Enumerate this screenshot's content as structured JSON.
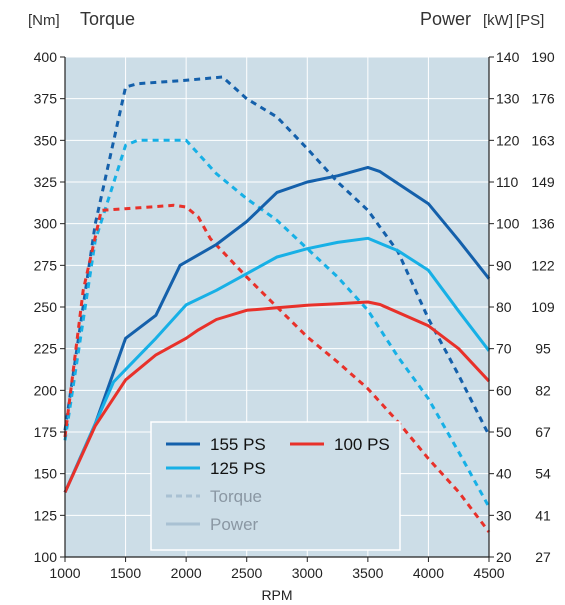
{
  "chart_data": {
    "type": "line",
    "header": {
      "left_unit": "[Nm]",
      "left_title": "Torque",
      "right_title": "Power",
      "right_unit_kw": "[kW]",
      "right_unit_ps": "[PS]"
    },
    "xlabel": "RPM",
    "xlim": [
      1000,
      4500
    ],
    "x_ticks": [
      1000,
      1500,
      2000,
      2500,
      3000,
      3500,
      4000,
      4500
    ],
    "ylim_torque_nm": [
      100,
      400
    ],
    "y_ticks_torque": [
      100,
      125,
      150,
      175,
      200,
      225,
      250,
      275,
      300,
      325,
      350,
      375,
      400
    ],
    "ylim_power_kw": [
      20,
      140
    ],
    "y_ticks_kw": [
      20,
      30,
      40,
      50,
      60,
      70,
      80,
      90,
      100,
      110,
      120,
      130,
      140
    ],
    "y_ticks_ps": [
      27,
      41,
      54,
      67,
      82,
      95,
      109,
      122,
      136,
      149,
      163,
      176,
      190
    ],
    "grid": true,
    "legend": {
      "placement": "bottom-center",
      "items": [
        {
          "label": "155 PS",
          "color": "#1460ab",
          "style": "solid"
        },
        {
          "label": "100 PS",
          "color": "#e8312a",
          "style": "solid"
        },
        {
          "label": "125 PS",
          "color": "#17b0e6",
          "style": "solid"
        },
        {
          "label": "Torque",
          "color": "#a9c1d3",
          "style": "dashed"
        },
        {
          "label": "Power",
          "color": "#a9c1d3",
          "style": "solid"
        }
      ]
    },
    "series": [
      {
        "variant": "155 PS",
        "measure": "Torque",
        "axis": "torque",
        "color": "#1460ab",
        "dashed": true,
        "x": [
          1000,
          1250,
          1500,
          1600,
          2000,
          2300,
          2500,
          2750,
          3000,
          3250,
          3500,
          3750,
          4000,
          4250,
          4500
        ],
        "y": [
          176,
          300,
          382,
          384,
          386,
          388,
          375,
          364,
          345,
          325,
          308,
          283,
          243,
          209,
          173
        ]
      },
      {
        "variant": "125 PS",
        "measure": "Torque",
        "axis": "torque",
        "color": "#17b0e6",
        "dashed": true,
        "x": [
          1000,
          1250,
          1500,
          1600,
          2000,
          2250,
          2500,
          2750,
          3000,
          3250,
          3500,
          3750,
          4000,
          4250,
          4500
        ],
        "y": [
          170,
          290,
          347,
          350,
          350,
          330,
          315,
          302,
          285,
          268,
          248,
          220,
          195,
          163,
          130
        ]
      },
      {
        "variant": "100 PS",
        "measure": "Torque",
        "axis": "torque",
        "color": "#e8312a",
        "dashed": true,
        "x": [
          1000,
          1150,
          1300,
          1500,
          1900,
          2000,
          2100,
          2200,
          2500,
          2750,
          3000,
          3250,
          3500,
          3750,
          4000,
          4250,
          4500
        ],
        "y": [
          172,
          260,
          308,
          309,
          311,
          310,
          304,
          291,
          268,
          250,
          232,
          217,
          201,
          181,
          159,
          139,
          115
        ]
      },
      {
        "variant": "155 PS",
        "measure": "Power",
        "axis": "power",
        "color": "#1460ab",
        "dashed": false,
        "x": [
          1000,
          1250,
          1500,
          1750,
          1950,
          2250,
          2500,
          2750,
          3000,
          3250,
          3500,
          3600,
          4000,
          4250,
          4500
        ],
        "y": [
          35.5,
          52,
          72.5,
          78,
          90,
          95,
          100.5,
          107.5,
          110,
          111.5,
          113.5,
          112.5,
          104.8,
          96,
          86.8
        ]
      },
      {
        "variant": "125 PS",
        "measure": "Power",
        "axis": "power",
        "color": "#17b0e6",
        "dashed": false,
        "x": [
          1000,
          1250,
          1400,
          1750,
          2000,
          2250,
          2500,
          2750,
          3000,
          3250,
          3500,
          3750,
          4000,
          4250,
          4500
        ],
        "y": [
          35.5,
          52,
          62,
          72.5,
          80.5,
          84,
          88,
          92,
          94,
          95.5,
          96.5,
          93.5,
          88.8,
          79,
          69.5
        ]
      },
      {
        "variant": "100 PS",
        "measure": "Power",
        "axis": "power",
        "color": "#e8312a",
        "dashed": false,
        "x": [
          1000,
          1250,
          1500,
          1750,
          2000,
          2100,
          2250,
          2500,
          2750,
          3000,
          3250,
          3500,
          3600,
          4000,
          4250,
          4500
        ],
        "y": [
          35.5,
          51.5,
          62.5,
          68.5,
          72.5,
          74.5,
          77,
          79.2,
          79.8,
          80.4,
          80.8,
          81.2,
          80.6,
          75.5,
          70,
          62.2
        ]
      }
    ]
  }
}
